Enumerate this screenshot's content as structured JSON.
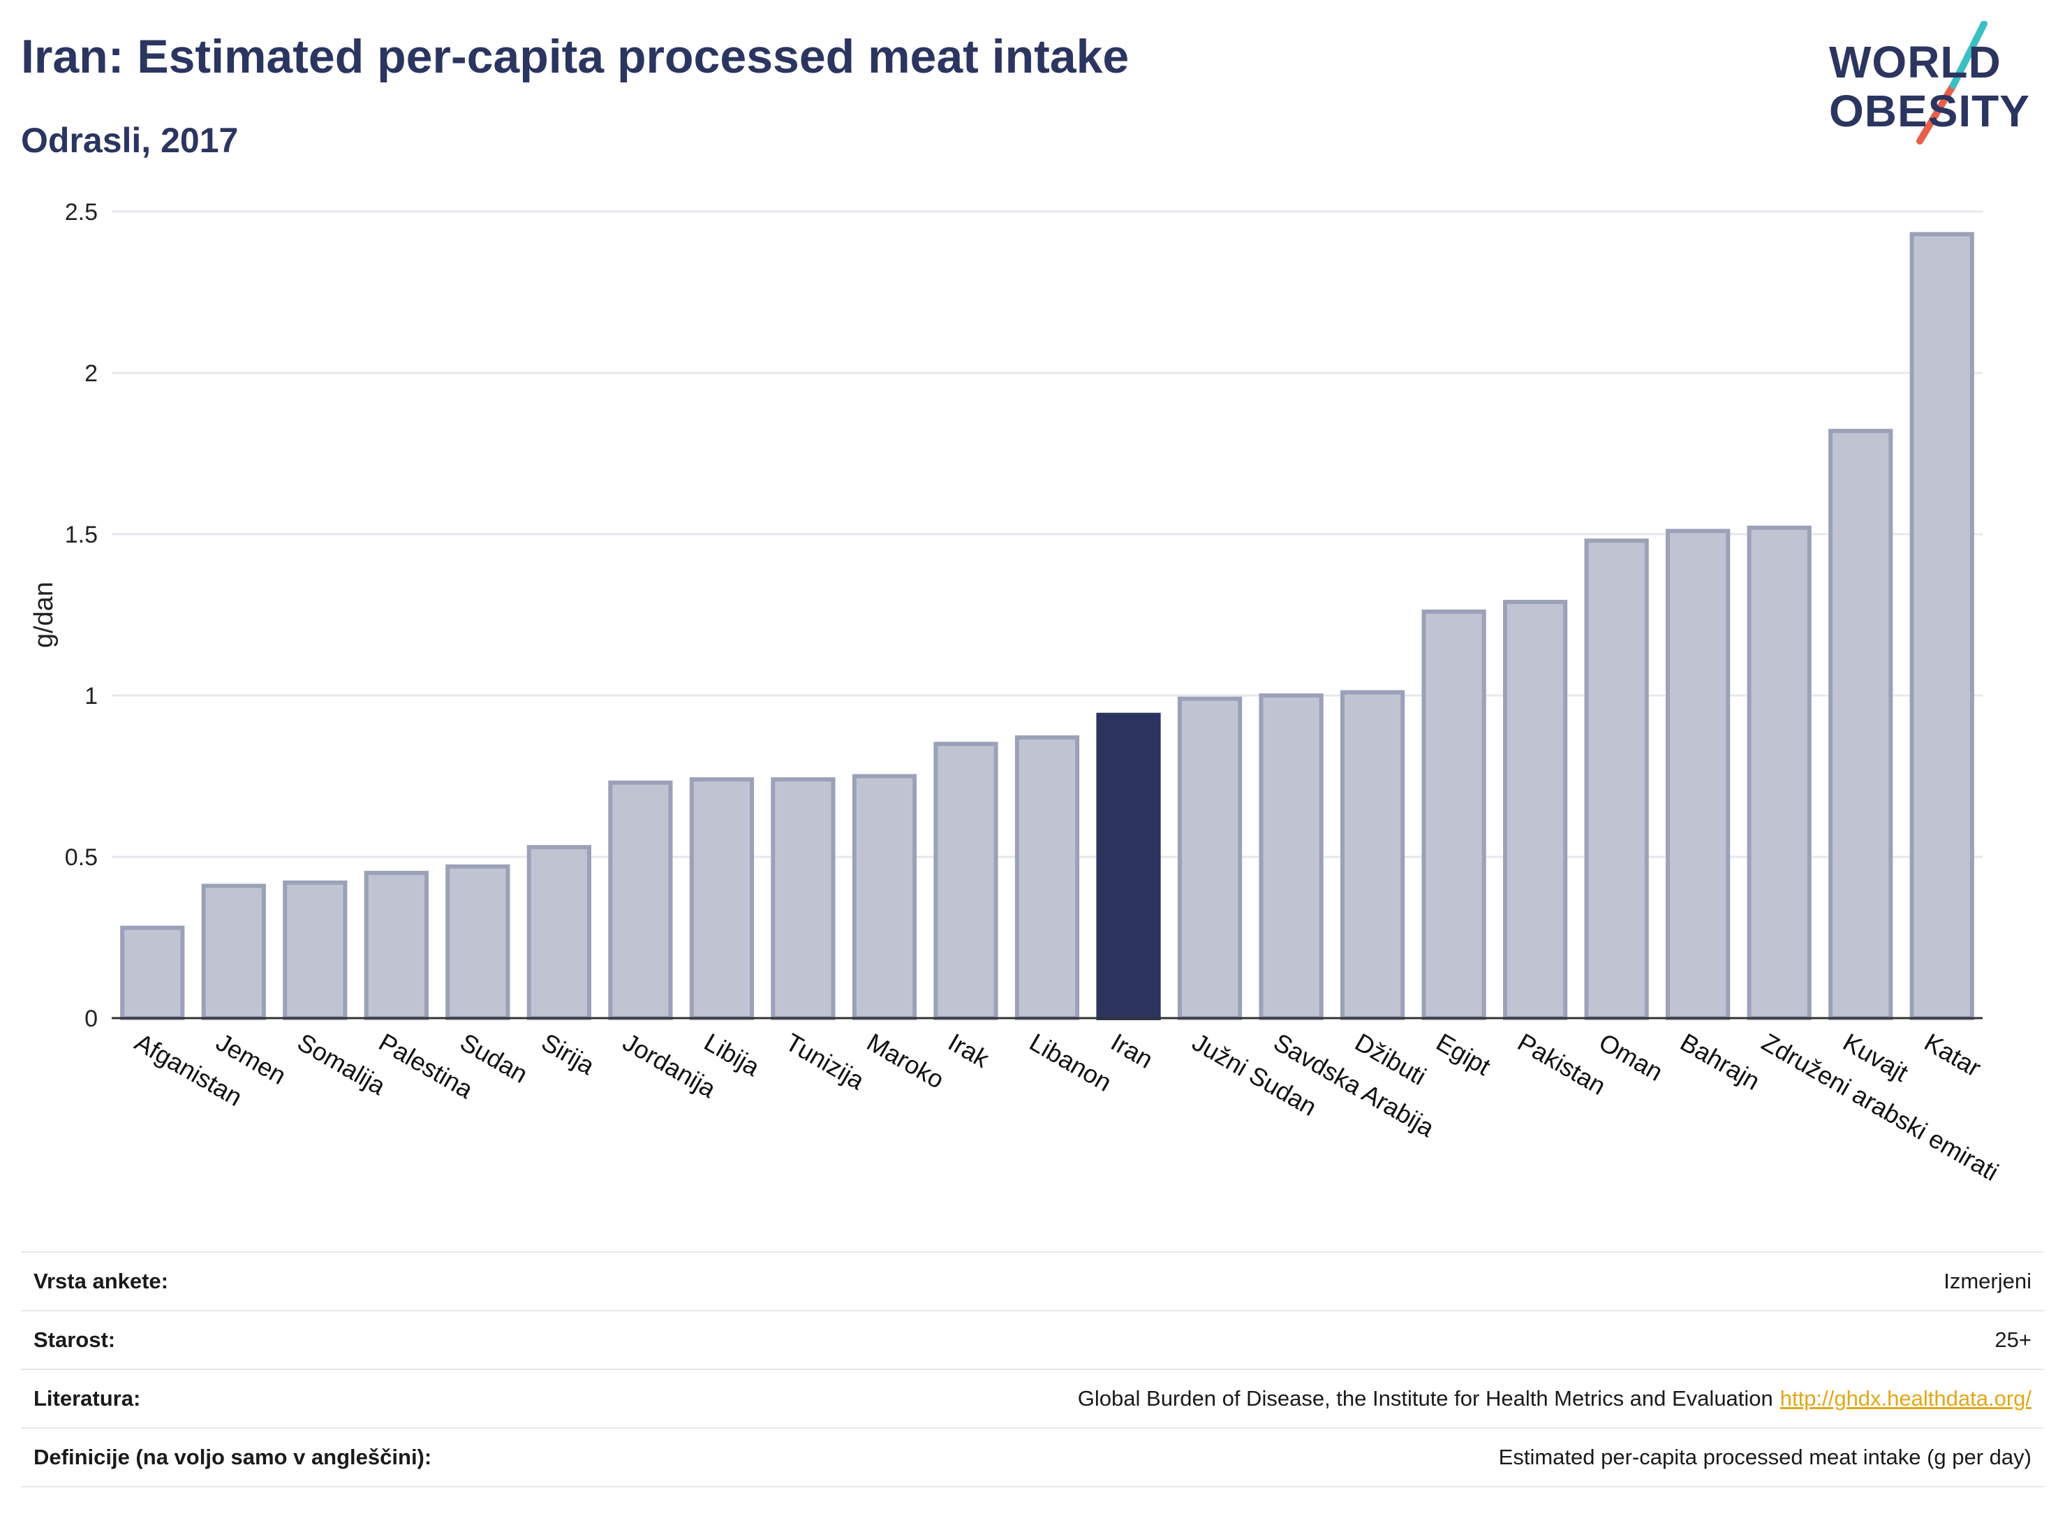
{
  "header": {
    "title": "Iran: Estimated per-capita processed meat intake",
    "subtitle": "Odrasli, 2017"
  },
  "logo": {
    "line1": "WORLD",
    "line2": "OBESITY",
    "colors": {
      "text": "#2b3560",
      "slash_top": "#3bbfc4",
      "slash_bottom": "#e8604c"
    }
  },
  "chart_data": {
    "type": "bar",
    "ylabel": "g/dan",
    "xlabel": "",
    "ylim": [
      0,
      2.5
    ],
    "yticks": [
      0,
      0.5,
      1,
      1.5,
      2,
      2.5
    ],
    "ytick_labels": [
      "0",
      "0.5",
      "1",
      "1.5",
      "2",
      "2.5"
    ],
    "grid": true,
    "highlight": "Iran",
    "colors": {
      "bar": "#c0c4d2",
      "bar_border": "#9ba1b8",
      "highlight": "#2b3560",
      "axis": "#333333",
      "grid": "#e6e8ee"
    },
    "categories": [
      "Afganistan",
      "Jemen",
      "Somalija",
      "Palestina",
      "Sudan",
      "Sirija",
      "Jordanija",
      "Libija",
      "Tunizija",
      "Maroko",
      "Irak",
      "Libanon",
      "Iran",
      "Južni Sudan",
      "Savdska Arabija",
      "Džibuti",
      "Egipt",
      "Pakistan",
      "Oman",
      "Bahrajn",
      "Združeni arabski emirati",
      "Kuvajt",
      "Katar"
    ],
    "values": [
      0.28,
      0.41,
      0.42,
      0.45,
      0.47,
      0.53,
      0.73,
      0.74,
      0.74,
      0.75,
      0.85,
      0.87,
      0.94,
      0.99,
      1.0,
      1.01,
      1.26,
      1.29,
      1.48,
      1.51,
      1.52,
      1.82,
      2.43
    ]
  },
  "info": [
    {
      "label": "Vrsta ankete:",
      "value": "Izmerjeni"
    },
    {
      "label": "Starost:",
      "value": "25+"
    },
    {
      "label": "Literatura:",
      "value": "Global Burden of Disease, the Institute for Health Metrics and Evaluation",
      "link": "http://ghdx.healthdata.org/"
    },
    {
      "label": "Definicije (na voljo samo v angleščini):",
      "value": "Estimated per-capita processed meat intake (g per day)"
    }
  ]
}
